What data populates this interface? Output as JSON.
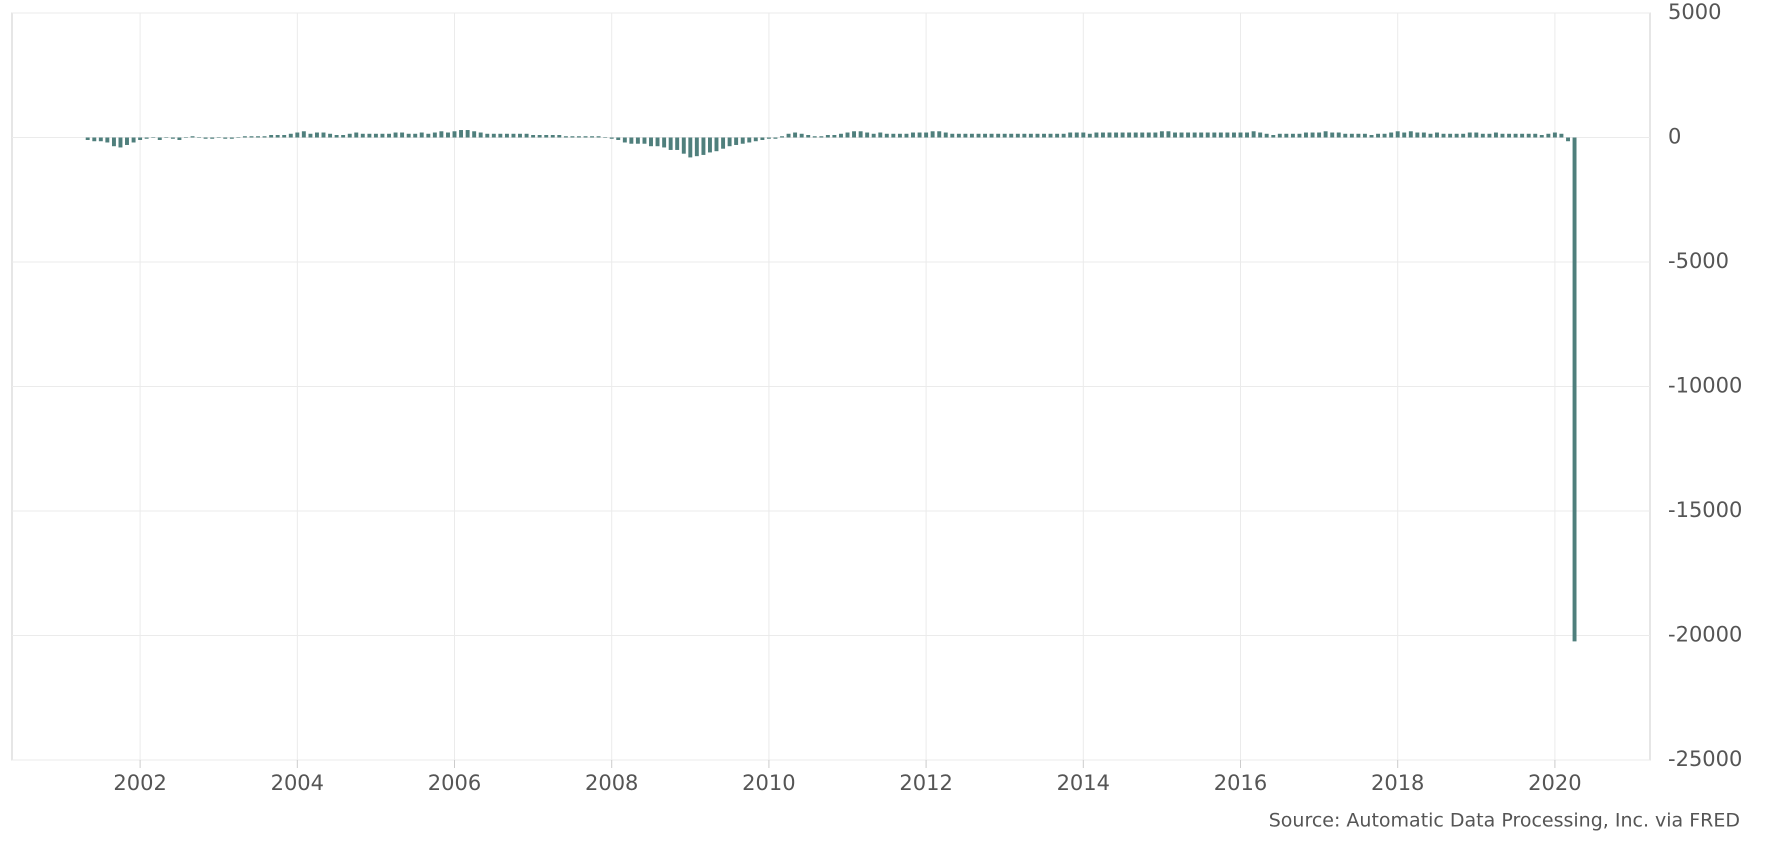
{
  "chart_data": {
    "type": "bar",
    "source": "Source: Automatic Data Processing, Inc. via FRED",
    "color": "#4f7f7c",
    "grid": true,
    "xlim": [
      2000.37,
      2021.21
    ],
    "xticks": [
      2002,
      2004,
      2006,
      2008,
      2010,
      2012,
      2014,
      2016,
      2018,
      2020
    ],
    "ylim": [
      -25000,
      5000
    ],
    "yticks": [
      5000,
      0,
      -5000,
      -10000,
      -15000,
      -20000,
      -25000
    ],
    "x": [
      2001.333,
      2001.417,
      2001.5,
      2001.583,
      2001.667,
      2001.75,
      2001.833,
      2001.917,
      2002,
      2002.083,
      2002.167,
      2002.25,
      2002.333,
      2002.417,
      2002.5,
      2002.583,
      2002.667,
      2002.75,
      2002.833,
      2002.917,
      2003,
      2003.083,
      2003.167,
      2003.25,
      2003.333,
      2003.417,
      2003.5,
      2003.583,
      2003.667,
      2003.75,
      2003.833,
      2003.917,
      2004,
      2004.083,
      2004.167,
      2004.25,
      2004.333,
      2004.417,
      2004.5,
      2004.583,
      2004.667,
      2004.75,
      2004.833,
      2004.917,
      2005,
      2005.083,
      2005.167,
      2005.25,
      2005.333,
      2005.417,
      2005.5,
      2005.583,
      2005.667,
      2005.75,
      2005.833,
      2005.917,
      2006,
      2006.083,
      2006.167,
      2006.25,
      2006.333,
      2006.417,
      2006.5,
      2006.583,
      2006.667,
      2006.75,
      2006.833,
      2006.917,
      2007,
      2007.083,
      2007.167,
      2007.25,
      2007.333,
      2007.417,
      2007.5,
      2007.583,
      2007.667,
      2007.75,
      2007.833,
      2007.917,
      2008,
      2008.083,
      2008.167,
      2008.25,
      2008.333,
      2008.417,
      2008.5,
      2008.583,
      2008.667,
      2008.75,
      2008.833,
      2008.917,
      2009,
      2009.083,
      2009.167,
      2009.25,
      2009.333,
      2009.417,
      2009.5,
      2009.583,
      2009.667,
      2009.75,
      2009.833,
      2009.917,
      2010,
      2010.083,
      2010.167,
      2010.25,
      2010.333,
      2010.417,
      2010.5,
      2010.583,
      2010.667,
      2010.75,
      2010.833,
      2010.917,
      2011,
      2011.083,
      2011.167,
      2011.25,
      2011.333,
      2011.417,
      2011.5,
      2011.583,
      2011.667,
      2011.75,
      2011.833,
      2011.917,
      2012,
      2012.083,
      2012.167,
      2012.25,
      2012.333,
      2012.417,
      2012.5,
      2012.583,
      2012.667,
      2012.75,
      2012.833,
      2012.917,
      2013,
      2013.083,
      2013.167,
      2013.25,
      2013.333,
      2013.417,
      2013.5,
      2013.583,
      2013.667,
      2013.75,
      2013.833,
      2013.917,
      2014,
      2014.083,
      2014.167,
      2014.25,
      2014.333,
      2014.417,
      2014.5,
      2014.583,
      2014.667,
      2014.75,
      2014.833,
      2014.917,
      2015,
      2015.083,
      2015.167,
      2015.25,
      2015.333,
      2015.417,
      2015.5,
      2015.583,
      2015.667,
      2015.75,
      2015.833,
      2015.917,
      2016,
      2016.083,
      2016.167,
      2016.25,
      2016.333,
      2016.417,
      2016.5,
      2016.583,
      2016.667,
      2016.75,
      2016.833,
      2016.917,
      2017,
      2017.083,
      2017.167,
      2017.25,
      2017.333,
      2017.417,
      2017.5,
      2017.583,
      2017.667,
      2017.75,
      2017.833,
      2017.917,
      2018,
      2018.083,
      2018.167,
      2018.25,
      2018.333,
      2018.417,
      2018.5,
      2018.583,
      2018.667,
      2018.75,
      2018.833,
      2018.917,
      2019,
      2019.083,
      2019.167,
      2019.25,
      2019.333,
      2019.417,
      2019.5,
      2019.583,
      2019.667,
      2019.75,
      2019.833,
      2019.917,
      2020,
      2020.083,
      2020.167,
      2020.25
    ],
    "values": [
      -100,
      -150,
      -150,
      -200,
      -350,
      -400,
      -300,
      -200,
      -100,
      -50,
      0,
      -100,
      0,
      -50,
      -100,
      0,
      50,
      0,
      -50,
      -50,
      0,
      -50,
      -50,
      0,
      50,
      50,
      50,
      50,
      100,
      100,
      100,
      150,
      200,
      250,
      150,
      200,
      200,
      150,
      100,
      100,
      150,
      200,
      150,
      150,
      150,
      150,
      150,
      200,
      200,
      150,
      150,
      200,
      150,
      200,
      250,
      200,
      250,
      300,
      300,
      250,
      200,
      150,
      150,
      150,
      150,
      150,
      150,
      150,
      100,
      100,
      100,
      100,
      100,
      50,
      50,
      50,
      50,
      50,
      50,
      0,
      -50,
      -100,
      -200,
      -250,
      -250,
      -250,
      -350,
      -350,
      -400,
      -500,
      -500,
      -650,
      -800,
      -750,
      -700,
      -600,
      -550,
      -450,
      -350,
      -300,
      -250,
      -200,
      -150,
      -100,
      -50,
      -50,
      50,
      150,
      200,
      150,
      100,
      50,
      50,
      100,
      100,
      150,
      200,
      250,
      250,
      200,
      150,
      200,
      150,
      150,
      150,
      150,
      200,
      200,
      200,
      250,
      250,
      200,
      150,
      150,
      150,
      150,
      150,
      150,
      150,
      150,
      150,
      150,
      150,
      150,
      150,
      150,
      150,
      150,
      150,
      150,
      200,
      200,
      200,
      150,
      200,
      200,
      200,
      200,
      200,
      200,
      200,
      200,
      200,
      200,
      250,
      250,
      200,
      200,
      200,
      200,
      200,
      200,
      200,
      200,
      200,
      200,
      200,
      200,
      250,
      200,
      150,
      100,
      150,
      150,
      150,
      150,
      200,
      200,
      200,
      250,
      200,
      200,
      150,
      150,
      150,
      150,
      100,
      150,
      150,
      200,
      250,
      200,
      250,
      200,
      200,
      150,
      200,
      150,
      150,
      150,
      150,
      200,
      200,
      150,
      150,
      200,
      150,
      150,
      150,
      150,
      150,
      150,
      100,
      150,
      200,
      150,
      -150,
      -20236
    ]
  }
}
